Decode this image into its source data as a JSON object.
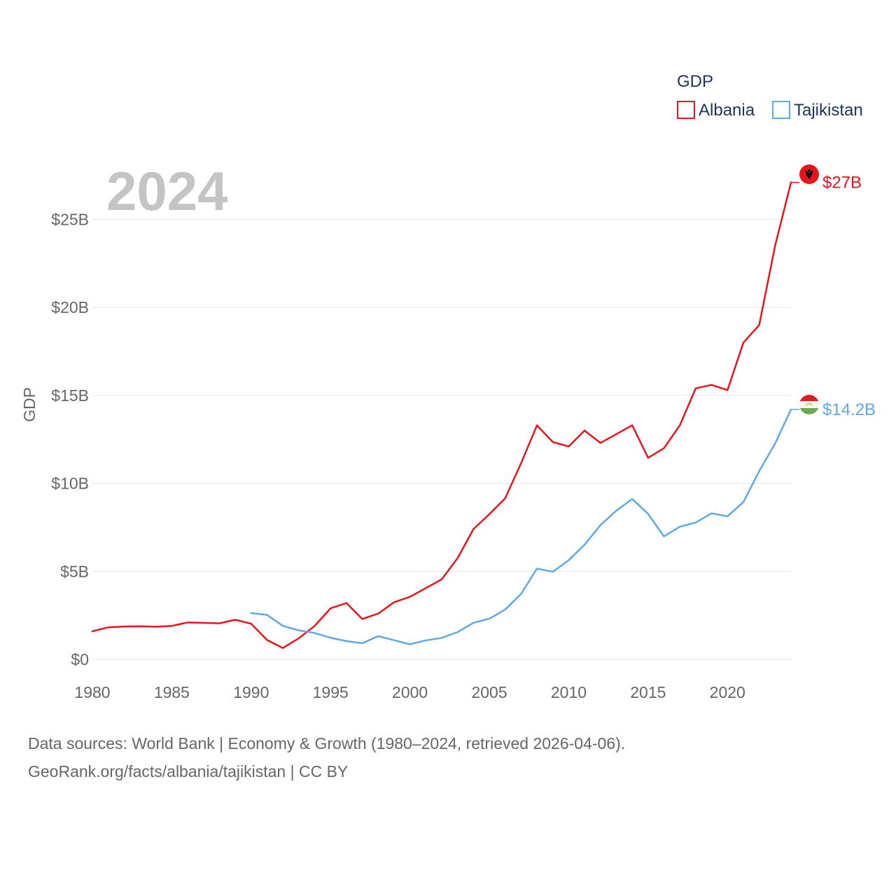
{
  "chart_data": {
    "type": "line",
    "year_label": "2024",
    "ylabel": "GDP",
    "xlabel": "",
    "legend_title": "GDP",
    "legend_position": "top-right",
    "ylim": [
      0,
      28
    ],
    "xlim": [
      1980,
      2024
    ],
    "y_ticks": [
      0,
      5,
      10,
      15,
      20,
      25
    ],
    "y_tick_labels": [
      "$0",
      "$5B",
      "$10B",
      "$15B",
      "$20B",
      "$25B"
    ],
    "x_ticks": [
      1980,
      1985,
      1990,
      1995,
      2000,
      2005,
      2010,
      2015,
      2020
    ],
    "x_tick_labels": [
      "1980",
      "1985",
      "1990",
      "1995",
      "2000",
      "2005",
      "2010",
      "2015",
      "2020"
    ],
    "grid": true,
    "series": [
      {
        "name": "Albania",
        "color": "#e8141c",
        "end_label": "$27B",
        "flag_icon": "albania-flag-icon",
        "x": [
          1980,
          1981,
          1982,
          1983,
          1984,
          1985,
          1986,
          1987,
          1988,
          1989,
          1990,
          1991,
          1992,
          1993,
          1994,
          1995,
          1996,
          1997,
          1998,
          1999,
          2000,
          2001,
          2002,
          2003,
          2004,
          2005,
          2006,
          2007,
          2008,
          2009,
          2010,
          2011,
          2012,
          2013,
          2014,
          2015,
          2016,
          2017,
          2018,
          2019,
          2020,
          2021,
          2022,
          2023,
          2024
        ],
        "values": [
          1.6,
          1.82,
          1.87,
          1.88,
          1.86,
          1.9,
          2.1,
          2.08,
          2.05,
          2.25,
          2.03,
          1.1,
          0.65,
          1.2,
          1.9,
          2.9,
          3.2,
          2.3,
          2.6,
          3.25,
          3.55,
          4.05,
          4.55,
          5.75,
          7.4,
          8.25,
          9.15,
          11.15,
          13.3,
          12.35,
          12.1,
          13.0,
          12.3,
          12.8,
          13.3,
          11.45,
          12.0,
          13.3,
          15.4,
          15.6,
          15.3,
          18.0,
          19.0,
          23.5,
          27.1
        ]
      },
      {
        "name": "Tajikistan",
        "color": "#5fa8e6",
        "end_label": "$14.2B",
        "flag_icon": "tajikistan-flag-icon",
        "x": [
          1990,
          1991,
          1992,
          1993,
          1994,
          1995,
          1996,
          1997,
          1998,
          1999,
          2000,
          2001,
          2002,
          2003,
          2004,
          2005,
          2006,
          2007,
          2008,
          2009,
          2010,
          2011,
          2012,
          2013,
          2014,
          2015,
          2016,
          2017,
          2018,
          2019,
          2020,
          2021,
          2022,
          2023,
          2024
        ],
        "values": [
          2.63,
          2.53,
          1.9,
          1.65,
          1.5,
          1.23,
          1.04,
          0.92,
          1.32,
          1.09,
          0.86,
          1.08,
          1.22,
          1.55,
          2.08,
          2.31,
          2.83,
          3.72,
          5.16,
          4.98,
          5.64,
          6.52,
          7.63,
          8.45,
          9.11,
          8.27,
          6.99,
          7.54,
          7.77,
          8.3,
          8.13,
          8.94,
          10.7,
          12.26,
          14.2
        ]
      }
    ]
  },
  "source": {
    "line1": "Data sources: World Bank | Economy & Growth (1980–2024, retrieved 2026-04-06).",
    "line2": "GeoRank.org/facts/albania/tajikistan | CC BY"
  }
}
